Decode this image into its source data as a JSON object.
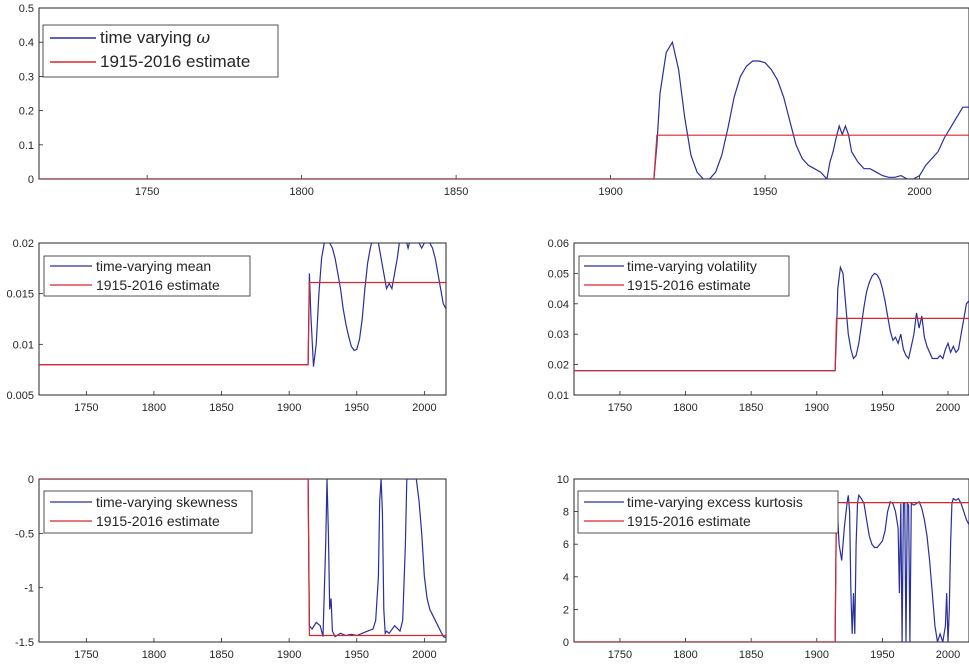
{
  "colors": {
    "blue": "#2a2f9c",
    "red": "#d8262b",
    "axis": "#262626"
  },
  "chart_data": [
    {
      "id": "omega",
      "type": "line",
      "xlim": [
        1715,
        2016
      ],
      "ylim": [
        0,
        0.5
      ],
      "xticks": [
        1750,
        1800,
        1850,
        1900,
        1950,
        2000
      ],
      "yticks": [
        0,
        0.1,
        0.2,
        0.3,
        0.4,
        0.5
      ],
      "ytick_labels": [
        "0",
        "0.1",
        "0.2",
        "0.3",
        "0.4",
        "0.5"
      ],
      "legend": {
        "placement": "top-left",
        "entries": [
          {
            "prefix": "time varying ",
            "symbol": "ω",
            "color": "#2a2f9c"
          },
          {
            "prefix": "1915-2016 estimate",
            "symbol": "",
            "color": "#d8262b"
          }
        ]
      },
      "series": [
        {
          "name": "time varying ω",
          "color": "#2a2f9c",
          "x": [
            1715,
            1914,
            1915,
            1916,
            1918,
            1920,
            1922,
            1924,
            1926,
            1928,
            1930,
            1932,
            1934,
            1936,
            1938,
            1940,
            1942,
            1944,
            1946,
            1948,
            1950,
            1952,
            1954,
            1956,
            1958,
            1960,
            1962,
            1964,
            1966,
            1968,
            1970,
            1971,
            1972,
            1973,
            1974,
            1975,
            1976,
            1977,
            1978,
            1980,
            1982,
            1984,
            1986,
            1988,
            1990,
            1992,
            1994,
            1996,
            1998,
            2000,
            2002,
            2004,
            2006,
            2008,
            2010,
            2012,
            2014,
            2016
          ],
          "y": [
            0,
            0,
            0.1,
            0.25,
            0.37,
            0.4,
            0.32,
            0.18,
            0.07,
            0.02,
            0,
            0,
            0.02,
            0.07,
            0.15,
            0.24,
            0.3,
            0.33,
            0.345,
            0.345,
            0.34,
            0.32,
            0.29,
            0.24,
            0.17,
            0.1,
            0.06,
            0.04,
            0.03,
            0.02,
            0,
            0.05,
            0.08,
            0.12,
            0.155,
            0.13,
            0.155,
            0.13,
            0.08,
            0.05,
            0.03,
            0.03,
            0.02,
            0.01,
            0.005,
            0.005,
            0.01,
            0,
            0,
            0.01,
            0.04,
            0.06,
            0.08,
            0.12,
            0.15,
            0.18,
            0.21,
            0.21
          ]
        },
        {
          "name": "1915-2016 estimate",
          "color": "#d8262b",
          "x": [
            1715,
            1914,
            1915,
            2016
          ],
          "y": [
            0,
            0,
            0.128,
            0.128
          ]
        }
      ]
    },
    {
      "id": "mean",
      "type": "line",
      "xlim": [
        1715,
        2016
      ],
      "ylim": [
        0.005,
        0.02
      ],
      "xticks": [
        1750,
        1800,
        1850,
        1900,
        1950,
        2000
      ],
      "yticks": [
        0.005,
        0.01,
        0.015,
        0.02
      ],
      "ytick_labels": [
        "0.005",
        "0.01",
        "0.015",
        "0.02"
      ],
      "legend": {
        "placement": "top-left",
        "entries": [
          {
            "prefix": "time-varying mean",
            "symbol": "",
            "color": "#2a2f9c"
          },
          {
            "prefix": "1915-2016 estimate",
            "symbol": "",
            "color": "#d8262b"
          }
        ]
      },
      "series": [
        {
          "name": "time-varying mean",
          "color": "#2a2f9c",
          "x": [
            1715,
            1914,
            1915,
            1916,
            1918,
            1920,
            1922,
            1924,
            1926,
            1928,
            1930,
            1932,
            1934,
            1936,
            1938,
            1940,
            1942,
            1944,
            1946,
            1948,
            1950,
            1952,
            1954,
            1956,
            1958,
            1960,
            1962,
            1964,
            1966,
            1968,
            1970,
            1972,
            1974,
            1976,
            1978,
            1980,
            1982,
            1984,
            1986,
            1988,
            1990,
            1992,
            1994,
            1996,
            1998,
            2000,
            2002,
            2004,
            2006,
            2008,
            2010,
            2012,
            2014,
            2016
          ],
          "y": [
            0.008,
            0.008,
            0.017,
            0.013,
            0.0078,
            0.01,
            0.015,
            0.0185,
            0.02,
            0.0205,
            0.02,
            0.0195,
            0.0185,
            0.017,
            0.0155,
            0.0135,
            0.012,
            0.0108,
            0.0098,
            0.0094,
            0.0095,
            0.0105,
            0.0125,
            0.0155,
            0.018,
            0.0195,
            0.0205,
            0.0205,
            0.02,
            0.0185,
            0.017,
            0.0155,
            0.016,
            0.0155,
            0.017,
            0.0185,
            0.0205,
            0.021,
            0.0205,
            0.0195,
            0.0205,
            0.021,
            0.0205,
            0.02,
            0.0195,
            0.02,
            0.0202,
            0.02,
            0.0195,
            0.0185,
            0.017,
            0.0155,
            0.014,
            0.0135
          ]
        },
        {
          "name": "1915-2016 estimate",
          "color": "#d8262b",
          "x": [
            1715,
            1914,
            1915,
            2016
          ],
          "y": [
            0.008,
            0.008,
            0.0161,
            0.0161
          ]
        }
      ]
    },
    {
      "id": "volatility",
      "type": "line",
      "xlim": [
        1715,
        2016
      ],
      "ylim": [
        0.01,
        0.06
      ],
      "xticks": [
        1750,
        1800,
        1850,
        1900,
        1950,
        2000
      ],
      "yticks": [
        0.01,
        0.02,
        0.03,
        0.04,
        0.05,
        0.06
      ],
      "ytick_labels": [
        "0.01",
        "0.02",
        "0.03",
        "0.04",
        "0.05",
        "0.06"
      ],
      "legend": {
        "placement": "top-left",
        "entries": [
          {
            "prefix": "time-varying volatility",
            "symbol": "",
            "color": "#2a2f9c"
          },
          {
            "prefix": "1915-2016 estimate",
            "symbol": "",
            "color": "#d8262b"
          }
        ]
      },
      "series": [
        {
          "name": "time-varying volatility",
          "color": "#2a2f9c",
          "x": [
            1715,
            1914,
            1915,
            1916,
            1918,
            1920,
            1922,
            1924,
            1926,
            1928,
            1930,
            1932,
            1934,
            1936,
            1938,
            1940,
            1942,
            1944,
            1946,
            1948,
            1950,
            1952,
            1954,
            1956,
            1958,
            1960,
            1962,
            1964,
            1966,
            1968,
            1970,
            1972,
            1974,
            1976,
            1978,
            1980,
            1982,
            1984,
            1986,
            1988,
            1990,
            1992,
            1994,
            1996,
            1998,
            2000,
            2002,
            2004,
            2006,
            2008,
            2010,
            2012,
            2014,
            2016
          ],
          "y": [
            0.018,
            0.018,
            0.03,
            0.045,
            0.052,
            0.05,
            0.04,
            0.03,
            0.025,
            0.022,
            0.023,
            0.027,
            0.033,
            0.039,
            0.044,
            0.047,
            0.049,
            0.05,
            0.0495,
            0.048,
            0.045,
            0.041,
            0.036,
            0.031,
            0.028,
            0.029,
            0.027,
            0.03,
            0.025,
            0.023,
            0.022,
            0.026,
            0.03,
            0.037,
            0.032,
            0.036,
            0.029,
            0.026,
            0.024,
            0.022,
            0.022,
            0.022,
            0.023,
            0.022,
            0.025,
            0.027,
            0.024,
            0.026,
            0.024,
            0.025,
            0.03,
            0.035,
            0.04,
            0.041
          ]
        },
        {
          "name": "1915-2016 estimate",
          "color": "#d8262b",
          "x": [
            1715,
            1914,
            1915,
            2016
          ],
          "y": [
            0.018,
            0.018,
            0.0352,
            0.0352
          ]
        }
      ]
    },
    {
      "id": "skewness",
      "type": "line",
      "xlim": [
        1715,
        2016
      ],
      "ylim": [
        -1.5,
        0
      ],
      "xticks": [
        1750,
        1800,
        1850,
        1900,
        1950,
        2000
      ],
      "yticks": [
        -1.5,
        -1,
        -0.5,
        0
      ],
      "ytick_labels": [
        "-1.5",
        "-1",
        "-0.5",
        "0"
      ],
      "legend": {
        "placement": "top-left",
        "entries": [
          {
            "prefix": "time-varying skewness",
            "symbol": "",
            "color": "#2a2f9c"
          },
          {
            "prefix": "1915-2016 estimate",
            "symbol": "",
            "color": "#d8262b"
          }
        ]
      },
      "series": [
        {
          "name": "time-varying skewness",
          "color": "#2a2f9c",
          "x": [
            1715,
            1914,
            1915,
            1917,
            1920,
            1923,
            1925,
            1927,
            1928,
            1929,
            1930,
            1931,
            1932,
            1934,
            1938,
            1942,
            1946,
            1950,
            1954,
            1958,
            1962,
            1964,
            1966,
            1967,
            1968,
            1969,
            1970,
            1971,
            1972,
            1974,
            1978,
            1982,
            1984,
            1986,
            1987,
            1988,
            1990,
            1992,
            1994,
            1996,
            1998,
            2000,
            2002,
            2004,
            2006,
            2008,
            2010,
            2012,
            2014,
            2016
          ],
          "y": [
            0,
            0,
            -1.35,
            -1.38,
            -1.32,
            -1.35,
            -1.45,
            -0.6,
            0,
            -0.5,
            -1.2,
            -1.1,
            -1.4,
            -1.45,
            -1.42,
            -1.44,
            -1.43,
            -1.44,
            -1.42,
            -1.4,
            -1.38,
            -1.3,
            -0.9,
            -0.2,
            0,
            -0.3,
            -1.2,
            -1.42,
            -1.4,
            -1.42,
            -1.35,
            -1.4,
            -1.3,
            -0.6,
            0,
            0,
            0,
            0,
            0,
            -0.2,
            -0.5,
            -0.9,
            -1.1,
            -1.2,
            -1.25,
            -1.3,
            -1.35,
            -1.4,
            -1.45,
            -1.46
          ]
        },
        {
          "name": "1915-2016 estimate",
          "color": "#d8262b",
          "x": [
            1715,
            1914,
            1915,
            2016
          ],
          "y": [
            0,
            0,
            -1.44,
            -1.44
          ]
        }
      ]
    },
    {
      "id": "kurtosis",
      "type": "line",
      "xlim": [
        1715,
        2016
      ],
      "ylim": [
        0,
        10
      ],
      "xticks": [
        1750,
        1800,
        1850,
        1900,
        1950,
        2000
      ],
      "yticks": [
        0,
        2,
        4,
        6,
        8,
        10
      ],
      "ytick_labels": [
        "0",
        "2",
        "4",
        "6",
        "8",
        "10"
      ],
      "legend": {
        "placement": "top-left",
        "entries": [
          {
            "prefix": "time-varying excess kurtosis",
            "symbol": "",
            "color": "#2a2f9c"
          },
          {
            "prefix": "1915-2016 estimate",
            "symbol": "",
            "color": "#d8262b"
          }
        ]
      },
      "series": [
        {
          "name": "time-varying excess kurtosis",
          "color": "#2a2f9c",
          "x": [
            1715,
            1914,
            1915,
            1917,
            1919,
            1921,
            1923,
            1924,
            1925,
            1926,
            1927,
            1928,
            1929,
            1930,
            1931,
            1932,
            1934,
            1936,
            1938,
            1940,
            1942,
            1944,
            1946,
            1948,
            1950,
            1952,
            1954,
            1956,
            1958,
            1960,
            1962,
            1963,
            1964,
            1965,
            1966,
            1967,
            1968,
            1969,
            1970,
            1971,
            1972,
            1974,
            1976,
            1978,
            1980,
            1982,
            1984,
            1986,
            1988,
            1990,
            1992,
            1994,
            1996,
            1998,
            1999,
            2000,
            2001,
            2002,
            2003,
            2004,
            2006,
            2008,
            2010,
            2012,
            2014,
            2016
          ],
          "y": [
            0,
            0,
            9,
            6,
            5,
            7,
            8.5,
            9,
            8,
            3,
            0.5,
            3,
            0.5,
            6,
            8.5,
            9,
            8.8,
            8.5,
            7.5,
            6.5,
            6,
            5.8,
            5.8,
            6,
            6.2,
            6.8,
            8,
            8.6,
            8.5,
            8,
            7,
            3,
            8.5,
            0,
            8.5,
            8.5,
            0,
            8.5,
            8.4,
            0,
            8.5,
            8.4,
            8.5,
            8.6,
            8.2,
            7.5,
            6.5,
            5,
            3,
            1,
            0,
            0.5,
            0,
            1,
            3,
            0,
            2,
            6,
            8.5,
            8.8,
            8.7,
            8.8,
            8.5,
            8,
            7.5,
            7.2
          ]
        },
        {
          "name": "1915-2016 estimate",
          "color": "#d8262b",
          "x": [
            1715,
            1914,
            1915,
            2016
          ],
          "y": [
            0,
            0,
            8.55,
            8.55
          ]
        }
      ]
    }
  ]
}
